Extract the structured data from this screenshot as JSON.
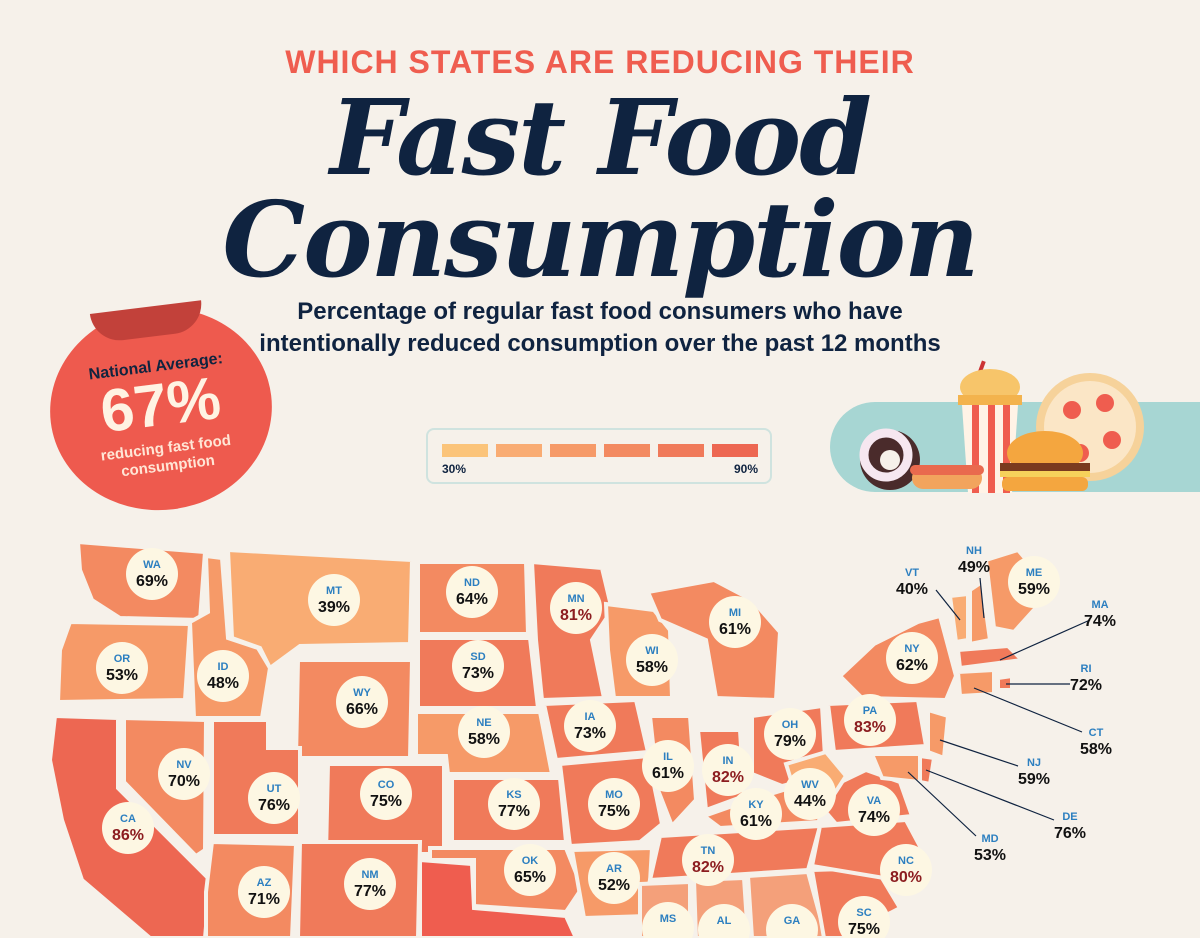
{
  "header": {
    "kicker": "WHICH STATES ARE REDUCING THEIR",
    "title_line1": "Fast Food",
    "title_line2": "Consumption",
    "subtitle_line1": "Percentage of regular fast food consumers who have",
    "subtitle_line2": "intentionally reduced consumption over the past 12 months"
  },
  "badge": {
    "label": "National Average:",
    "value": "67%",
    "caption_line1": "reducing fast food",
    "caption_line2": "consumption"
  },
  "legend": {
    "min_label": "30%",
    "max_label": "90%",
    "colors": [
      "#fbc47a",
      "#f9ac73",
      "#f69a68",
      "#f38a61",
      "#f07a5a",
      "#ed6752"
    ]
  },
  "colors": {
    "background": "#f6f1ea",
    "accent_red": "#ef5d4f",
    "title_navy": "#0f2340",
    "abbr_blue": "#2c7fc0",
    "teal_band": "#a7d6d3"
  },
  "chart_data": {
    "type": "choropleth",
    "metric": "percent",
    "states": [
      {
        "abbr": "WA",
        "value": "69%"
      },
      {
        "abbr": "OR",
        "value": "53%"
      },
      {
        "abbr": "CA",
        "value": "86%"
      },
      {
        "abbr": "NV",
        "value": "70%"
      },
      {
        "abbr": "ID",
        "value": "48%"
      },
      {
        "abbr": "MT",
        "value": "39%"
      },
      {
        "abbr": "WY",
        "value": "66%"
      },
      {
        "abbr": "UT",
        "value": "76%"
      },
      {
        "abbr": "CO",
        "value": "75%"
      },
      {
        "abbr": "AZ",
        "value": "71%"
      },
      {
        "abbr": "NM",
        "value": "77%"
      },
      {
        "abbr": "ND",
        "value": "64%"
      },
      {
        "abbr": "SD",
        "value": "73%"
      },
      {
        "abbr": "NE",
        "value": "58%"
      },
      {
        "abbr": "KS",
        "value": "77%"
      },
      {
        "abbr": "OK",
        "value": "65%"
      },
      {
        "abbr": "MN",
        "value": "81%"
      },
      {
        "abbr": "IA",
        "value": "73%"
      },
      {
        "abbr": "MO",
        "value": "75%"
      },
      {
        "abbr": "AR",
        "value": "52%"
      },
      {
        "abbr": "WI",
        "value": "58%"
      },
      {
        "abbr": "IL",
        "value": "61%"
      },
      {
        "abbr": "MI",
        "value": "61%"
      },
      {
        "abbr": "IN",
        "value": "82%"
      },
      {
        "abbr": "OH",
        "value": "79%"
      },
      {
        "abbr": "KY",
        "value": "61%"
      },
      {
        "abbr": "TN",
        "value": "82%"
      },
      {
        "abbr": "MS",
        "value": ""
      },
      {
        "abbr": "AL",
        "value": ""
      },
      {
        "abbr": "GA",
        "value": ""
      },
      {
        "abbr": "SC",
        "value": "75%"
      },
      {
        "abbr": "NC",
        "value": "80%"
      },
      {
        "abbr": "VA",
        "value": "74%"
      },
      {
        "abbr": "WV",
        "value": "44%"
      },
      {
        "abbr": "PA",
        "value": "83%"
      },
      {
        "abbr": "NY",
        "value": "62%"
      },
      {
        "abbr": "VT",
        "value": "40%"
      },
      {
        "abbr": "NH",
        "value": "49%"
      },
      {
        "abbr": "ME",
        "value": "59%"
      },
      {
        "abbr": "MA",
        "value": "74%"
      },
      {
        "abbr": "RI",
        "value": "72%"
      },
      {
        "abbr": "CT",
        "value": "58%"
      },
      {
        "abbr": "NJ",
        "value": "59%"
      },
      {
        "abbr": "DE",
        "value": "76%"
      },
      {
        "abbr": "MD",
        "value": "53%"
      }
    ]
  }
}
